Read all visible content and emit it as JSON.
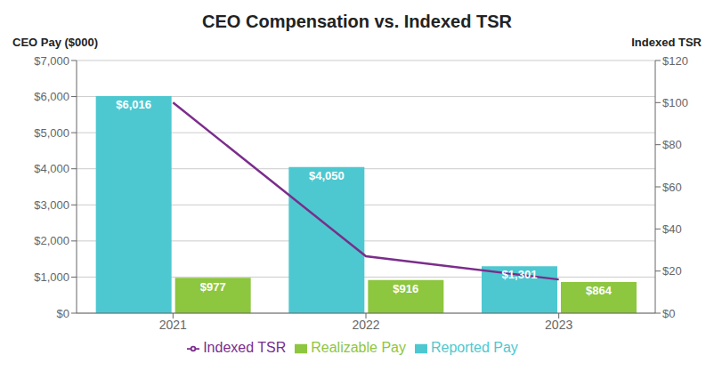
{
  "chart_data": {
    "type": "bar",
    "title": "CEO Compensation vs. Indexed TSR",
    "ylabel": "CEO Pay ($000)",
    "y2label": "Indexed TSR",
    "categories": [
      "2021",
      "2022",
      "2023"
    ],
    "series": [
      {
        "name": "Reported Pay",
        "type": "bar",
        "color": "#4DC8D0",
        "values": [
          6016,
          4050,
          1301
        ],
        "value_labels": [
          "$6,016",
          "$4,050",
          "$1,301"
        ],
        "data_labels": true
      },
      {
        "name": "Realizable Pay",
        "type": "bar",
        "color": "#8DC63F",
        "values": [
          977,
          916,
          864
        ],
        "value_labels": [
          "$977",
          "$916",
          "$864"
        ],
        "data_labels": true
      },
      {
        "name": "Indexed TSR",
        "type": "line",
        "color": "#7B2D8B",
        "axis": "y2",
        "values": [
          100,
          27,
          16
        ]
      }
    ],
    "ylim": [
      0,
      7000
    ],
    "yticks": [
      {
        "value": 0,
        "label": "$0"
      },
      {
        "value": 1000,
        "label": "$1,000"
      },
      {
        "value": 2000,
        "label": "$2,000"
      },
      {
        "value": 3000,
        "label": "$3,000"
      },
      {
        "value": 4000,
        "label": "$4,000"
      },
      {
        "value": 5000,
        "label": "$5,000"
      },
      {
        "value": 6000,
        "label": "$6,000"
      },
      {
        "value": 7000,
        "label": "$7,000"
      }
    ],
    "y2lim": [
      0,
      120
    ],
    "y2ticks": [
      {
        "value": 0,
        "label": "$0"
      },
      {
        "value": 20,
        "label": "$20"
      },
      {
        "value": 40,
        "label": "$40"
      },
      {
        "value": 60,
        "label": "$60"
      },
      {
        "value": 80,
        "label": "$80"
      },
      {
        "value": 100,
        "label": "$100"
      },
      {
        "value": 120,
        "label": "$120"
      }
    ],
    "grid": true,
    "legend": "bottom"
  }
}
